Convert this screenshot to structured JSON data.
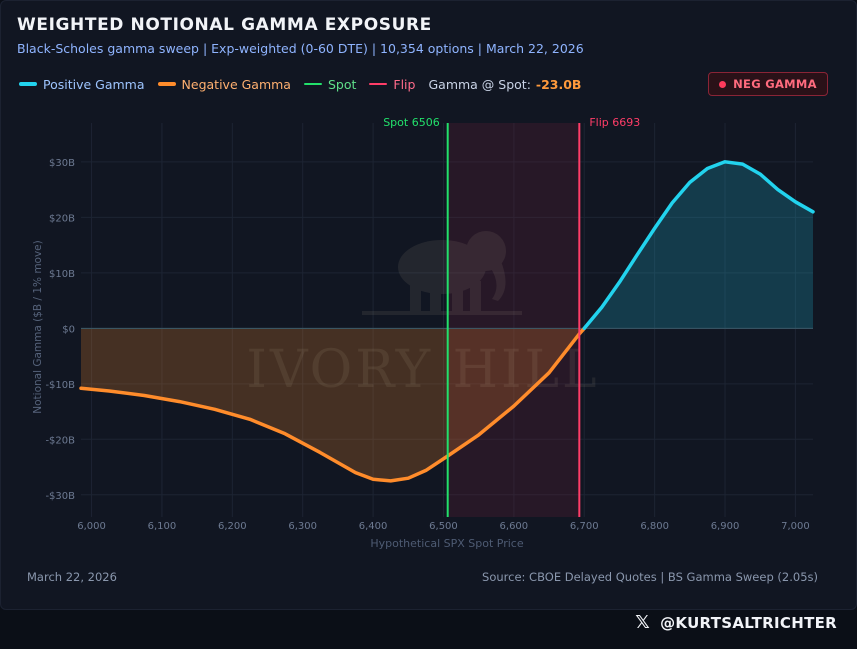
{
  "header": {
    "title": "WEIGHTED NOTIONAL GAMMA EXPOSURE",
    "subtitle": "Black-Scholes gamma sweep | Exp-weighted (0-60 DTE) | 10,354 options | March 22, 2026"
  },
  "legend": {
    "positive_label": "Positive Gamma",
    "negative_label": "Negative Gamma",
    "spot_label": "Spot",
    "flip_label": "Flip",
    "gamma_at_spot_label": "Gamma @ Spot:",
    "gamma_at_spot_value": "-23.0B"
  },
  "badge": {
    "label": "NEG GAMMA",
    "icon": "dot-icon"
  },
  "watermark": {
    "text": "IVORY HILL",
    "icon": "elephant-icon"
  },
  "footer": {
    "date": "March 22, 2026",
    "source": "Source: CBOE Delayed Quotes | BS Gamma Sweep (2.05s)",
    "handle": "@KURTSALTRICHTER",
    "handle_icon": "x-logo-icon"
  },
  "colors": {
    "positive": "#22d3ee",
    "negative": "#ff8c2b",
    "spot": "#22e06b",
    "flip": "#ff3d68",
    "background": "#111622"
  },
  "chart_data": {
    "type": "area",
    "xlabel": "Hypothetical SPX Spot Price",
    "ylabel": "Notional Gamma ($B / 1% move)",
    "xlim": [
      5985,
      7025
    ],
    "ylim": [
      -34,
      37
    ],
    "x_ticks": [
      6000,
      6100,
      6200,
      6300,
      6400,
      6500,
      6600,
      6700,
      6800,
      6900,
      7000
    ],
    "x_tick_labels": [
      "6,000",
      "6,100",
      "6,200",
      "6,300",
      "6,400",
      "6,500",
      "6,600",
      "6,700",
      "6,800",
      "6,900",
      "7,000"
    ],
    "y_ticks": [
      -30,
      -20,
      -10,
      0,
      10,
      20,
      30
    ],
    "y_tick_labels": [
      "-$30B",
      "-$20B",
      "-$10B",
      "$0",
      "$10B",
      "$20B",
      "$30B"
    ],
    "grid": true,
    "spot": {
      "value": 6506,
      "label": "Spot 6506"
    },
    "flip": {
      "value": 6693,
      "label": "Flip 6693"
    },
    "x": [
      5985,
      6025,
      6075,
      6125,
      6175,
      6225,
      6275,
      6325,
      6375,
      6400,
      6425,
      6450,
      6475,
      6506,
      6550,
      6600,
      6650,
      6693,
      6700,
      6725,
      6750,
      6775,
      6800,
      6825,
      6850,
      6875,
      6900,
      6925,
      6950,
      6975,
      7000,
      7025
    ],
    "y": [
      -10.8,
      -11.3,
      -12.1,
      -13.2,
      -14.6,
      -16.4,
      -19.0,
      -22.4,
      -26.0,
      -27.2,
      -27.5,
      -27.0,
      -25.6,
      -23.0,
      -19.2,
      -14.0,
      -8.0,
      -1.0,
      0.0,
      3.8,
      8.3,
      13.2,
      18.0,
      22.6,
      26.3,
      28.8,
      30.0,
      29.6,
      27.8,
      25.0,
      22.8,
      21.0
    ]
  }
}
